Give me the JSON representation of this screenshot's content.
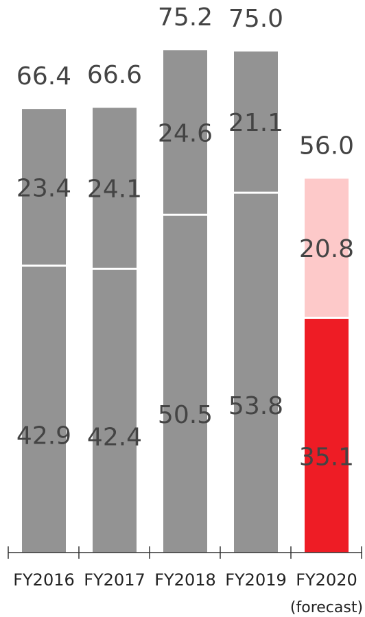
{
  "chart_data": {
    "type": "bar",
    "stacked": true,
    "categories": [
      "FY2016",
      "FY2017",
      "FY2018",
      "FY2019",
      "FY2020"
    ],
    "category_note": "(forecast)",
    "series": [
      {
        "values": [
          42.9,
          42.4,
          50.5,
          53.8,
          35.1
        ]
      },
      {
        "values": [
          23.4,
          24.1,
          24.6,
          21.1,
          20.8
        ]
      }
    ],
    "totals": [
      "66.4",
      "66.6",
      "75.2",
      "75.0",
      "56.0"
    ],
    "segment_labels": [
      [
        "42.9",
        "42.4",
        "50.5",
        "53.8",
        "35.1"
      ],
      [
        "23.4",
        "24.1",
        "24.6",
        "21.1",
        "20.8"
      ]
    ],
    "colors": {
      "actual_bar": "#939393",
      "forecast_lower": "#ee1c25",
      "forecast_upper": "#fdc9c9",
      "separator": "#ffffff",
      "axis": "#333333"
    },
    "ylim": [
      0,
      80
    ],
    "grid": false,
    "legend": "none"
  }
}
